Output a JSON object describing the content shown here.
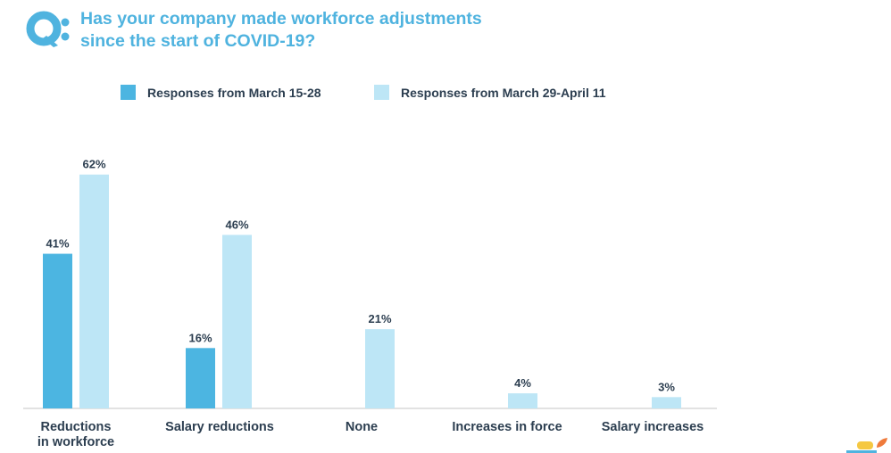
{
  "header": {
    "q_icon": "q-bubble-icon",
    "title_lines": [
      "Has your company made workforce adjustments",
      "since the start of COVID-19?"
    ]
  },
  "colors": {
    "accent": "#4fb3df",
    "series1": "#4cb5e1",
    "series2": "#bde6f6",
    "text": "#2c3e50",
    "axis": "#d9d9d9"
  },
  "chart_data": {
    "type": "bar",
    "title": "Has your company made workforce adjustments since the start of COVID-19?",
    "categories": [
      [
        "Reductions",
        "in workforce"
      ],
      [
        "Salary reductions"
      ],
      [
        "None"
      ],
      [
        "Increases in force"
      ],
      [
        "Salary increases"
      ]
    ],
    "series": [
      {
        "name": "Responses from March 15-28",
        "values": [
          41,
          16,
          null,
          null,
          null
        ],
        "labels": [
          "41%",
          "16%",
          "",
          "",
          ""
        ]
      },
      {
        "name": "Responses from March 29-April 11",
        "values": [
          62,
          46,
          21,
          4,
          3
        ],
        "labels": [
          "62%",
          "46%",
          "21%",
          "4%",
          "3%"
        ]
      }
    ],
    "ylim": [
      0,
      70
    ],
    "grid": false,
    "legend": "top"
  },
  "footer": {
    "logo_icon": "brand-logo-icon"
  }
}
